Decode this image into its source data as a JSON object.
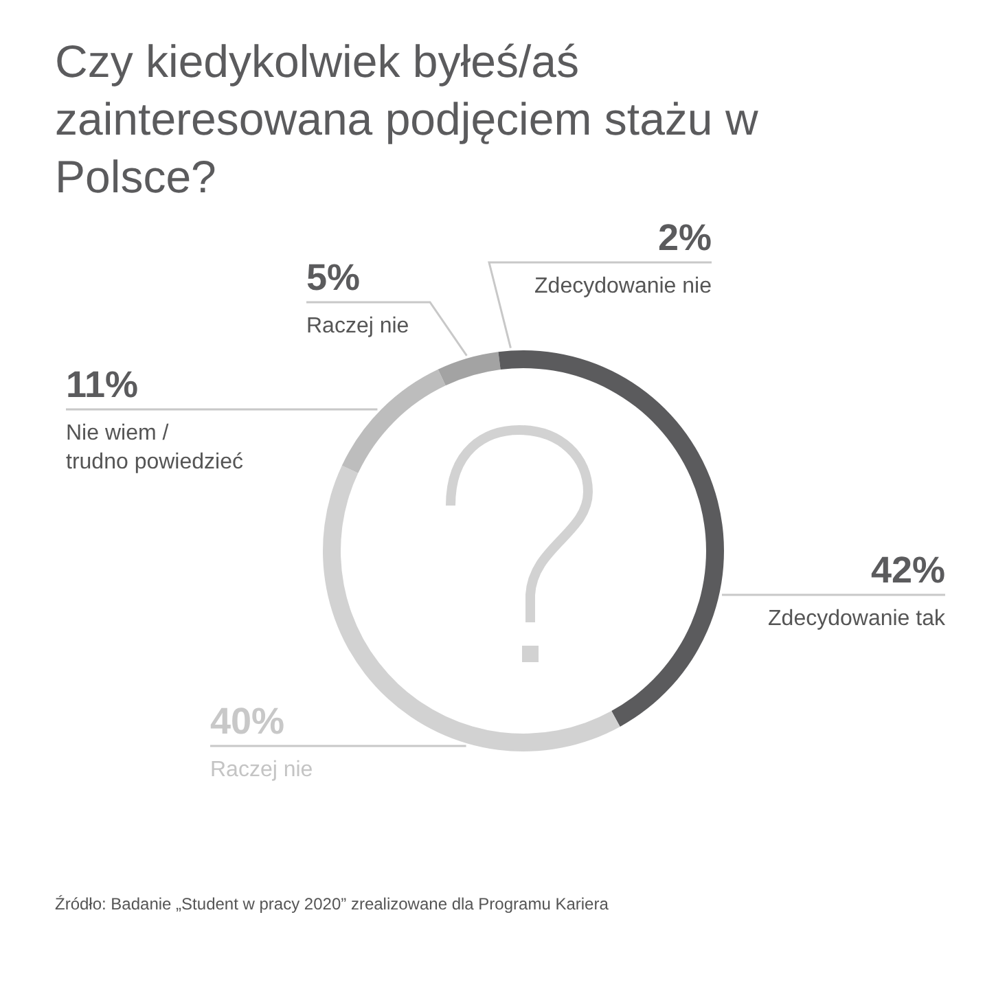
{
  "chart_data": {
    "type": "donut",
    "title": "Czy kiedykolwiek byłeś/aś zainteresowana podjęciem stażu w Polsce?",
    "categories": [
      "Zdecydowanie tak",
      "Raczej nie",
      "Nie wiem / trudno powiedzieć",
      "Raczej nie",
      "Zdecydowanie nie"
    ],
    "values": [
      42,
      40,
      11,
      5,
      2
    ],
    "colors": [
      "#5b5b5d",
      "#d2d2d2",
      "#bdbdbd",
      "#a3a3a3",
      "#5b5b5d"
    ],
    "value_labels": [
      "42%",
      "40%",
      "11%",
      "5%",
      "2%"
    ],
    "annotations": [
      "Źródło: Badanie „Student w pracy 2020” zrealizowane dla Programu Kariera"
    ]
  }
}
